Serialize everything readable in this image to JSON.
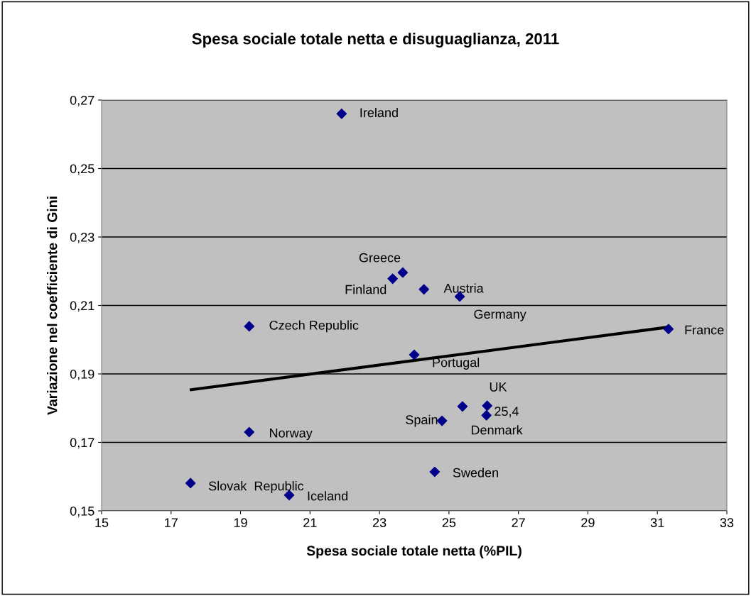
{
  "chart_data": {
    "type": "scatter",
    "title": "Spesa sociale totale netta e disuguaglianza, 2011",
    "xlabel": "Spesa sociale totale netta (%PIL)",
    "ylabel": "Variazione nel coefficiente di Gini",
    "series": [
      {
        "marker": "diamond",
        "color": "#00008b",
        "x": [
          21.91,
          23.67,
          23.38,
          24.28,
          25.31,
          19.25,
          31.32,
          24.0,
          26.1,
          25.39,
          26.08,
          24.8,
          19.25,
          24.59,
          17.56,
          20.4
        ],
        "values": [
          0.266,
          0.2196,
          0.2178,
          0.2147,
          0.2126,
          0.2039,
          0.2031,
          0.1956,
          0.1807,
          0.1805,
          0.1779,
          0.1763,
          0.173,
          0.1614,
          0.1581,
          0.1546
        ]
      },
      {
        "type": "line",
        "marker": "none",
        "color": "#000000",
        "x": [
          17.58,
          31.34
        ],
        "values": [
          0.1854,
          0.2037
        ]
      }
    ],
    "annotations": [
      {
        "text": "Ireland",
        "x": 21.91,
        "y": 0.266
      },
      {
        "text": "Greece",
        "x": 23.67,
        "y": 0.2196
      },
      {
        "text": "Finland",
        "x": 23.38,
        "y": 0.2178
      },
      {
        "text": "Austria",
        "x": 24.28,
        "y": 0.2147
      },
      {
        "text": "Germany",
        "x": 25.31,
        "y": 0.2126
      },
      {
        "text": "Czech Republic",
        "x": 19.25,
        "y": 0.2039
      },
      {
        "text": "France",
        "x": 31.32,
        "y": 0.2031
      },
      {
        "text": "Portugal",
        "x": 24.0,
        "y": 0.1956
      },
      {
        "text": "UK",
        "x": 26.1,
        "y": 0.1807
      },
      {
        "text": "25,4",
        "x": 25.39,
        "y": 0.1805
      },
      {
        "text": "Denmark",
        "x": 26.08,
        "y": 0.1779
      },
      {
        "text": "Spain",
        "x": 24.8,
        "y": 0.1763
      },
      {
        "text": "Norway",
        "x": 19.25,
        "y": 0.173
      },
      {
        "text": "Sweden",
        "x": 24.59,
        "y": 0.1614
      },
      {
        "text": "Slovak  Republic",
        "x": 17.56,
        "y": 0.1581
      },
      {
        "text": "Iceland",
        "x": 20.4,
        "y": 0.1546
      }
    ],
    "xlim": [
      15,
      33
    ],
    "xticks": [
      15,
      17,
      19,
      21,
      23,
      25,
      27,
      29,
      31,
      33
    ],
    "ylim": [
      0.15,
      0.27
    ],
    "yticks": [
      {
        "value": 0.15,
        "label": "0,15"
      },
      {
        "value": 0.17,
        "label": "0,17"
      },
      {
        "value": 0.19,
        "label": "0,19"
      },
      {
        "value": 0.21,
        "label": "0,21"
      },
      {
        "value": 0.23,
        "label": "0,23"
      },
      {
        "value": 0.25,
        "label": "0,25"
      },
      {
        "value": 0.27,
        "label": "0,27"
      }
    ],
    "grid": "y",
    "legend": false
  }
}
